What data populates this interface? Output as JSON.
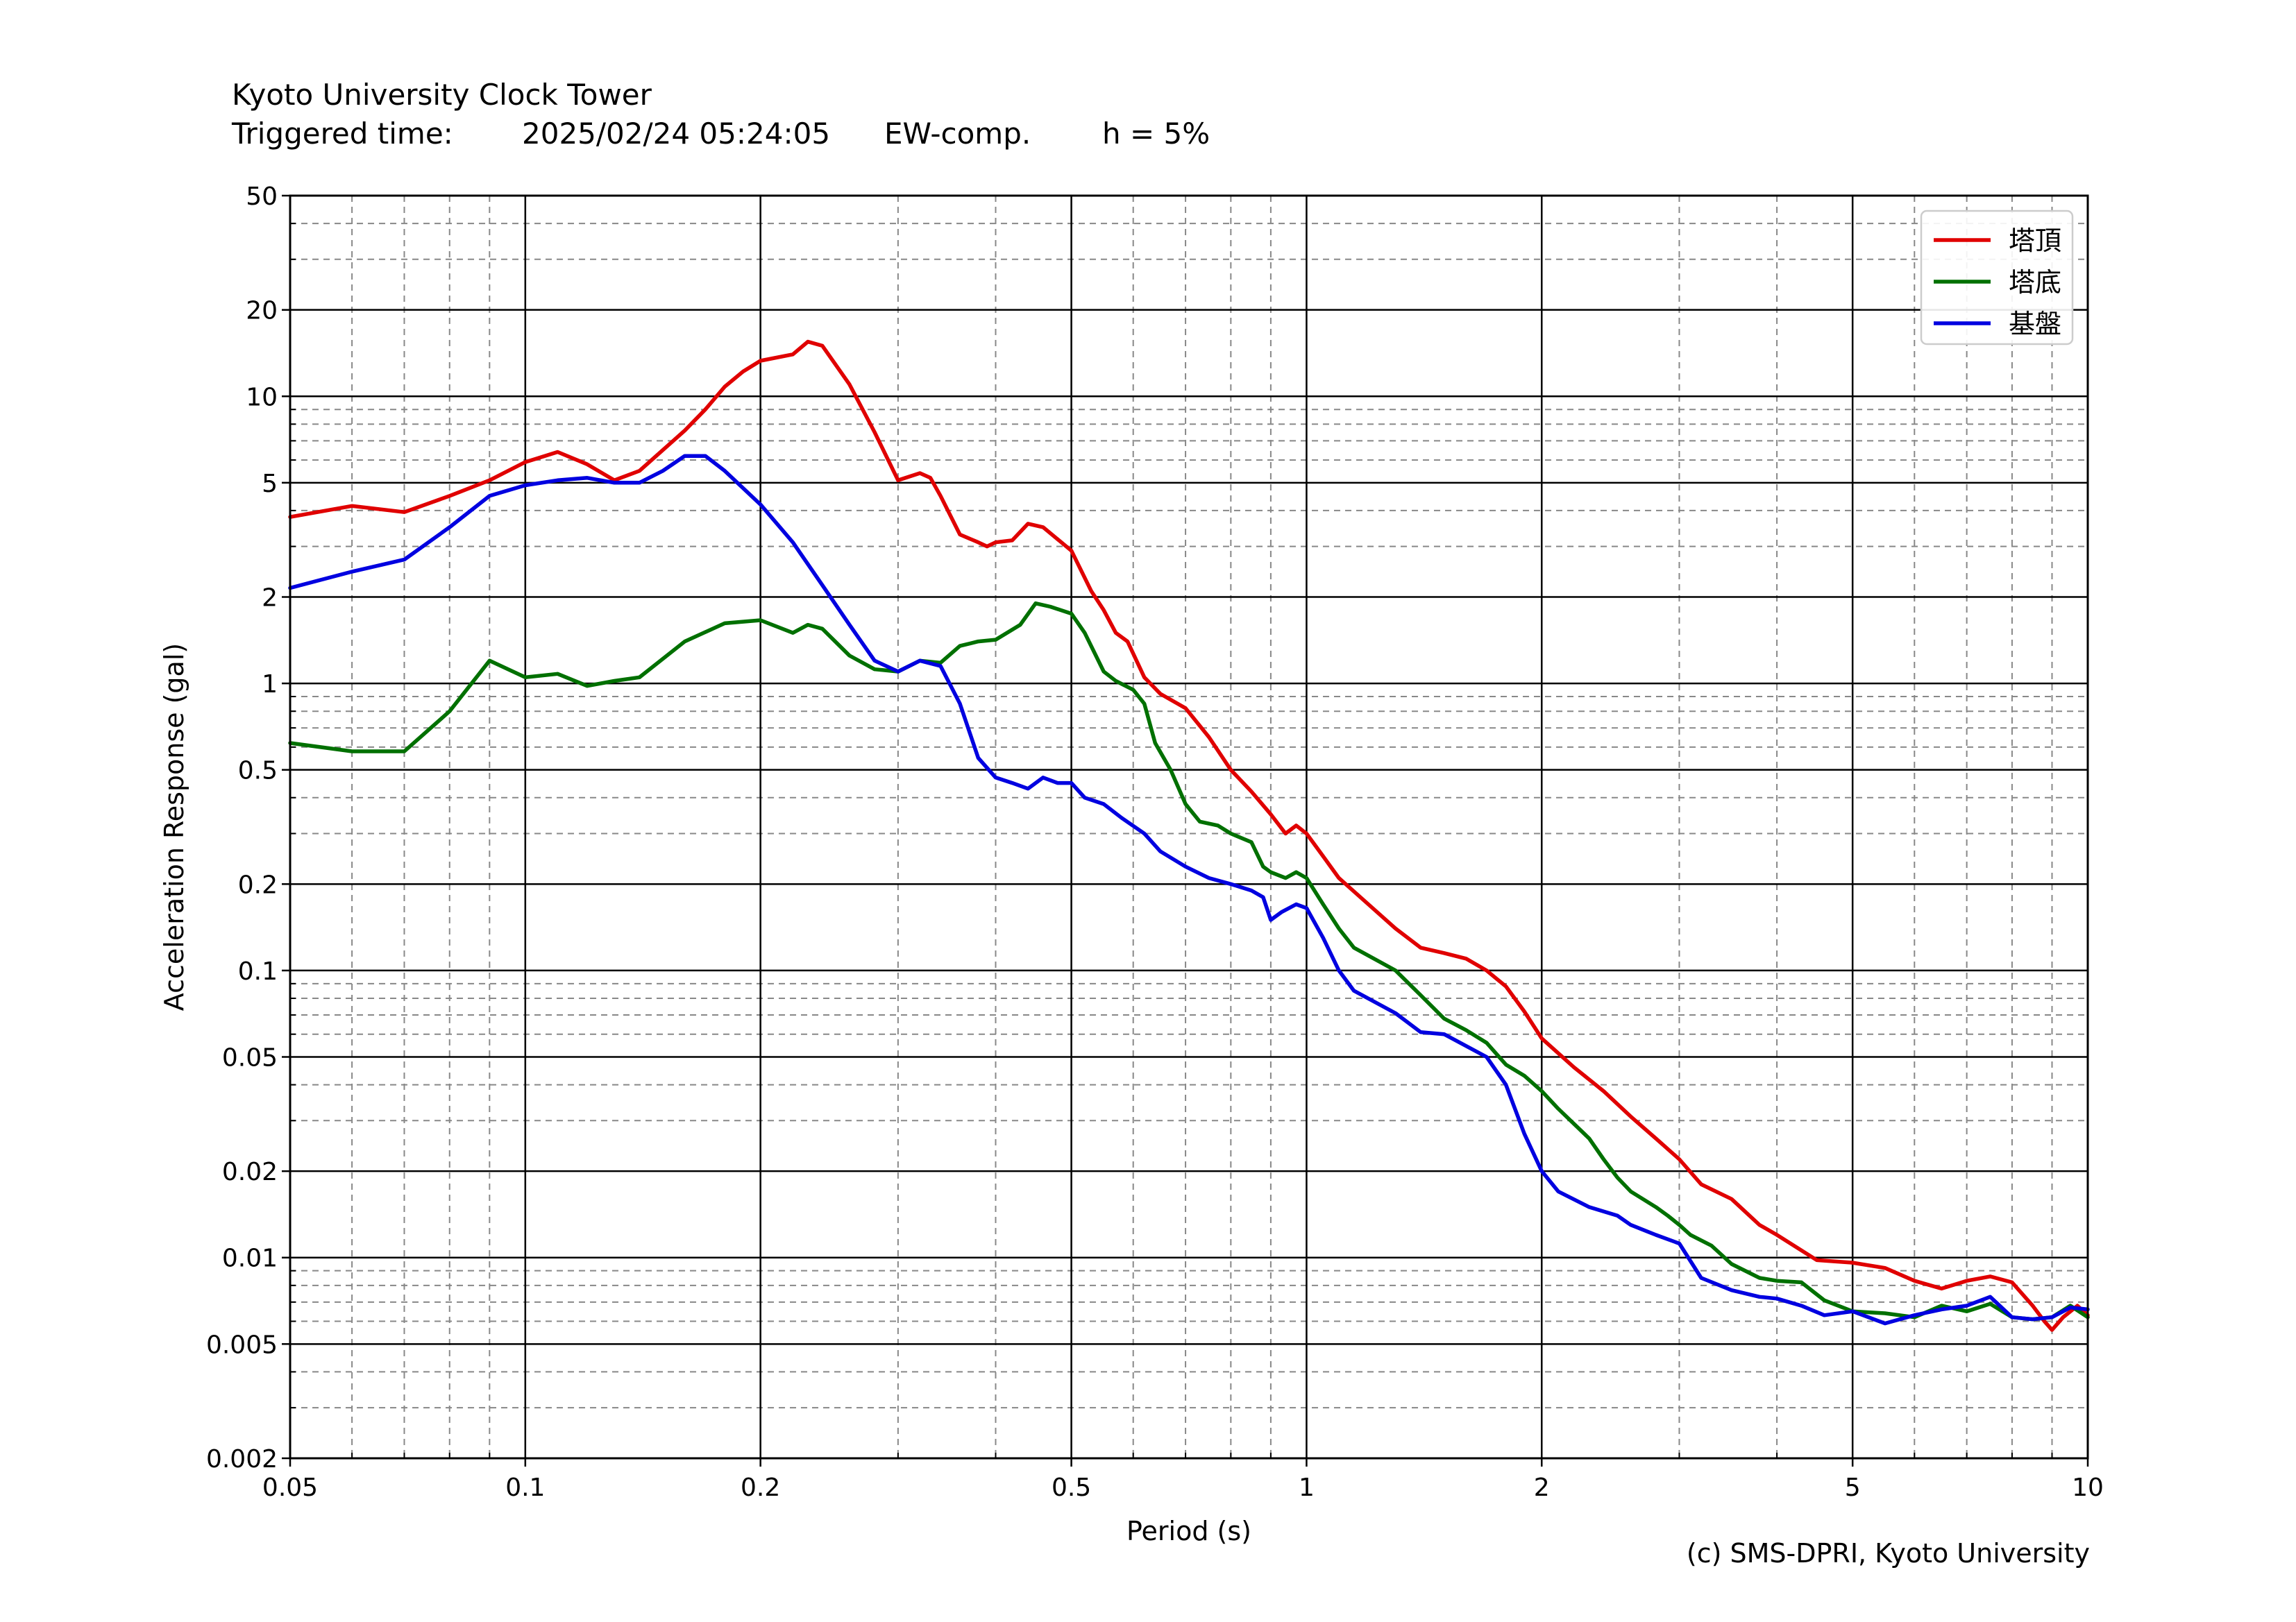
{
  "header": {
    "title": "Kyoto University Clock Tower",
    "triggered_label": "Triggered time:",
    "triggered_value": "2025/02/24 05:24:05",
    "component": "EW-comp.",
    "damping": "h = 5%"
  },
  "credit": "(c) SMS-DPRI, Kyoto University",
  "chart_data": {
    "type": "line",
    "title": "Kyoto University Clock Tower",
    "xlabel": "Period (s)",
    "ylabel": "Acceleration Response (gal)",
    "xscale": "log",
    "yscale": "log",
    "xlim": [
      0.05,
      10
    ],
    "ylim": [
      0.002,
      50
    ],
    "xticks": [
      0.05,
      0.1,
      0.2,
      0.5,
      1,
      2,
      5,
      10
    ],
    "xtick_labels": [
      "0.05",
      "0.1",
      "0.2",
      "0.5",
      "1",
      "2",
      "5",
      "10"
    ],
    "yticks": [
      0.002,
      0.005,
      0.01,
      0.02,
      0.05,
      0.1,
      0.2,
      0.5,
      1,
      2,
      5,
      10,
      20,
      50
    ],
    "ytick_labels": [
      "0.002",
      "0.005",
      "0.01",
      "0.02",
      "0.05",
      "0.1",
      "0.2",
      "0.5",
      "1",
      "2",
      "5",
      "10",
      "20",
      "50"
    ],
    "grid": true,
    "legend_position": "top-right",
    "series": [
      {
        "name": "塔頂",
        "color": "#e00000",
        "points": [
          [
            0.05,
            3.8
          ],
          [
            0.06,
            4.15
          ],
          [
            0.07,
            3.95
          ],
          [
            0.08,
            4.5
          ],
          [
            0.09,
            5.1
          ],
          [
            0.1,
            5.9
          ],
          [
            0.11,
            6.4
          ],
          [
            0.12,
            5.8
          ],
          [
            0.13,
            5.1
          ],
          [
            0.14,
            5.5
          ],
          [
            0.15,
            6.5
          ],
          [
            0.16,
            7.6
          ],
          [
            0.17,
            9.0
          ],
          [
            0.18,
            10.8
          ],
          [
            0.19,
            12.2
          ],
          [
            0.2,
            13.3
          ],
          [
            0.22,
            14.0
          ],
          [
            0.23,
            15.5
          ],
          [
            0.24,
            15.0
          ],
          [
            0.26,
            11.0
          ],
          [
            0.28,
            7.5
          ],
          [
            0.3,
            5.1
          ],
          [
            0.32,
            5.4
          ],
          [
            0.33,
            5.2
          ],
          [
            0.34,
            4.5
          ],
          [
            0.36,
            3.3
          ],
          [
            0.38,
            3.1
          ],
          [
            0.39,
            3.0
          ],
          [
            0.4,
            3.1
          ],
          [
            0.42,
            3.15
          ],
          [
            0.44,
            3.6
          ],
          [
            0.46,
            3.5
          ],
          [
            0.5,
            2.9
          ],
          [
            0.53,
            2.1
          ],
          [
            0.55,
            1.8
          ],
          [
            0.57,
            1.5
          ],
          [
            0.59,
            1.4
          ],
          [
            0.62,
            1.05
          ],
          [
            0.65,
            0.92
          ],
          [
            0.7,
            0.82
          ],
          [
            0.75,
            0.65
          ],
          [
            0.8,
            0.5
          ],
          [
            0.85,
            0.42
          ],
          [
            0.9,
            0.35
          ],
          [
            0.94,
            0.3
          ],
          [
            0.97,
            0.32
          ],
          [
            1.0,
            0.3
          ],
          [
            1.05,
            0.25
          ],
          [
            1.1,
            0.21
          ],
          [
            1.2,
            0.17
          ],
          [
            1.3,
            0.14
          ],
          [
            1.4,
            0.12
          ],
          [
            1.5,
            0.115
          ],
          [
            1.6,
            0.11
          ],
          [
            1.7,
            0.1
          ],
          [
            1.8,
            0.088
          ],
          [
            1.9,
            0.072
          ],
          [
            2.0,
            0.058
          ],
          [
            2.2,
            0.046
          ],
          [
            2.4,
            0.038
          ],
          [
            2.6,
            0.031
          ],
          [
            2.8,
            0.026
          ],
          [
            3.0,
            0.022
          ],
          [
            3.2,
            0.018
          ],
          [
            3.5,
            0.016
          ],
          [
            3.8,
            0.013
          ],
          [
            4.0,
            0.012
          ],
          [
            4.5,
            0.0098
          ],
          [
            5.0,
            0.0096
          ],
          [
            5.5,
            0.0092
          ],
          [
            6.0,
            0.0083
          ],
          [
            6.5,
            0.0078
          ],
          [
            7.0,
            0.0083
          ],
          [
            7.5,
            0.0086
          ],
          [
            8.0,
            0.0082
          ],
          [
            8.5,
            0.0068
          ],
          [
            8.8,
            0.006
          ],
          [
            9.0,
            0.0056
          ],
          [
            9.3,
            0.0062
          ],
          [
            9.7,
            0.0068
          ],
          [
            10.0,
            0.0063
          ]
        ]
      },
      {
        "name": "塔底",
        "color": "#007000",
        "points": [
          [
            0.05,
            0.62
          ],
          [
            0.06,
            0.58
          ],
          [
            0.07,
            0.58
          ],
          [
            0.08,
            0.8
          ],
          [
            0.09,
            1.2
          ],
          [
            0.1,
            1.05
          ],
          [
            0.11,
            1.08
          ],
          [
            0.12,
            0.98
          ],
          [
            0.13,
            1.02
          ],
          [
            0.14,
            1.05
          ],
          [
            0.16,
            1.4
          ],
          [
            0.18,
            1.62
          ],
          [
            0.2,
            1.66
          ],
          [
            0.22,
            1.5
          ],
          [
            0.23,
            1.6
          ],
          [
            0.24,
            1.55
          ],
          [
            0.26,
            1.25
          ],
          [
            0.28,
            1.12
          ],
          [
            0.3,
            1.1
          ],
          [
            0.32,
            1.2
          ],
          [
            0.34,
            1.18
          ],
          [
            0.36,
            1.35
          ],
          [
            0.38,
            1.4
          ],
          [
            0.4,
            1.42
          ],
          [
            0.43,
            1.6
          ],
          [
            0.45,
            1.9
          ],
          [
            0.47,
            1.85
          ],
          [
            0.5,
            1.75
          ],
          [
            0.52,
            1.5
          ],
          [
            0.55,
            1.1
          ],
          [
            0.57,
            1.02
          ],
          [
            0.6,
            0.95
          ],
          [
            0.62,
            0.85
          ],
          [
            0.64,
            0.62
          ],
          [
            0.67,
            0.5
          ],
          [
            0.7,
            0.38
          ],
          [
            0.73,
            0.33
          ],
          [
            0.77,
            0.32
          ],
          [
            0.8,
            0.3
          ],
          [
            0.85,
            0.28
          ],
          [
            0.88,
            0.23
          ],
          [
            0.9,
            0.22
          ],
          [
            0.94,
            0.21
          ],
          [
            0.97,
            0.22
          ],
          [
            1.0,
            0.21
          ],
          [
            1.05,
            0.17
          ],
          [
            1.1,
            0.14
          ],
          [
            1.15,
            0.12
          ],
          [
            1.3,
            0.1
          ],
          [
            1.4,
            0.082
          ],
          [
            1.5,
            0.068
          ],
          [
            1.6,
            0.062
          ],
          [
            1.7,
            0.056
          ],
          [
            1.8,
            0.047
          ],
          [
            1.9,
            0.043
          ],
          [
            2.0,
            0.038
          ],
          [
            2.1,
            0.033
          ],
          [
            2.3,
            0.026
          ],
          [
            2.4,
            0.022
          ],
          [
            2.5,
            0.019
          ],
          [
            2.6,
            0.017
          ],
          [
            2.8,
            0.015
          ],
          [
            2.9,
            0.014
          ],
          [
            3.0,
            0.013
          ],
          [
            3.1,
            0.012
          ],
          [
            3.3,
            0.011
          ],
          [
            3.5,
            0.0095
          ],
          [
            3.8,
            0.0085
          ],
          [
            4.0,
            0.0083
          ],
          [
            4.3,
            0.0082
          ],
          [
            4.6,
            0.0071
          ],
          [
            5.0,
            0.0065
          ],
          [
            5.5,
            0.0064
          ],
          [
            6.0,
            0.0062
          ],
          [
            6.5,
            0.0068
          ],
          [
            7.0,
            0.0065
          ],
          [
            7.5,
            0.0069
          ],
          [
            8.0,
            0.0062
          ],
          [
            8.5,
            0.0061
          ],
          [
            9.0,
            0.0062
          ],
          [
            9.5,
            0.0068
          ],
          [
            10.0,
            0.0062
          ]
        ]
      },
      {
        "name": "基盤",
        "color": "#0000e0",
        "points": [
          [
            0.05,
            2.15
          ],
          [
            0.06,
            2.45
          ],
          [
            0.07,
            2.7
          ],
          [
            0.08,
            3.5
          ],
          [
            0.09,
            4.5
          ],
          [
            0.1,
            4.9
          ],
          [
            0.11,
            5.1
          ],
          [
            0.12,
            5.2
          ],
          [
            0.13,
            5.0
          ],
          [
            0.14,
            5.0
          ],
          [
            0.15,
            5.5
          ],
          [
            0.16,
            6.2
          ],
          [
            0.17,
            6.2
          ],
          [
            0.18,
            5.5
          ],
          [
            0.2,
            4.2
          ],
          [
            0.22,
            3.1
          ],
          [
            0.24,
            2.2
          ],
          [
            0.26,
            1.6
          ],
          [
            0.28,
            1.2
          ],
          [
            0.3,
            1.1
          ],
          [
            0.32,
            1.2
          ],
          [
            0.34,
            1.15
          ],
          [
            0.36,
            0.85
          ],
          [
            0.38,
            0.55
          ],
          [
            0.4,
            0.47
          ],
          [
            0.42,
            0.45
          ],
          [
            0.44,
            0.43
          ],
          [
            0.46,
            0.47
          ],
          [
            0.48,
            0.45
          ],
          [
            0.5,
            0.45
          ],
          [
            0.52,
            0.4
          ],
          [
            0.55,
            0.38
          ],
          [
            0.58,
            0.34
          ],
          [
            0.62,
            0.3
          ],
          [
            0.65,
            0.26
          ],
          [
            0.7,
            0.23
          ],
          [
            0.75,
            0.21
          ],
          [
            0.8,
            0.2
          ],
          [
            0.85,
            0.19
          ],
          [
            0.88,
            0.18
          ],
          [
            0.9,
            0.15
          ],
          [
            0.93,
            0.16
          ],
          [
            0.97,
            0.17
          ],
          [
            1.0,
            0.165
          ],
          [
            1.05,
            0.13
          ],
          [
            1.1,
            0.1
          ],
          [
            1.15,
            0.085
          ],
          [
            1.3,
            0.071
          ],
          [
            1.4,
            0.061
          ],
          [
            1.5,
            0.06
          ],
          [
            1.7,
            0.05
          ],
          [
            1.8,
            0.04
          ],
          [
            1.9,
            0.027
          ],
          [
            2.0,
            0.02
          ],
          [
            2.1,
            0.017
          ],
          [
            2.3,
            0.015
          ],
          [
            2.5,
            0.014
          ],
          [
            2.6,
            0.013
          ],
          [
            2.8,
            0.012
          ],
          [
            3.0,
            0.0112
          ],
          [
            3.2,
            0.0085
          ],
          [
            3.5,
            0.0077
          ],
          [
            3.8,
            0.0073
          ],
          [
            4.0,
            0.0072
          ],
          [
            4.3,
            0.0068
          ],
          [
            4.6,
            0.0063
          ],
          [
            5.0,
            0.0065
          ],
          [
            5.5,
            0.0059
          ],
          [
            6.0,
            0.0063
          ],
          [
            6.5,
            0.0066
          ],
          [
            7.0,
            0.0068
          ],
          [
            7.5,
            0.0073
          ],
          [
            8.0,
            0.0062
          ],
          [
            8.5,
            0.0061
          ],
          [
            9.0,
            0.0062
          ],
          [
            9.5,
            0.0067
          ],
          [
            10.0,
            0.0066
          ]
        ]
      }
    ]
  }
}
